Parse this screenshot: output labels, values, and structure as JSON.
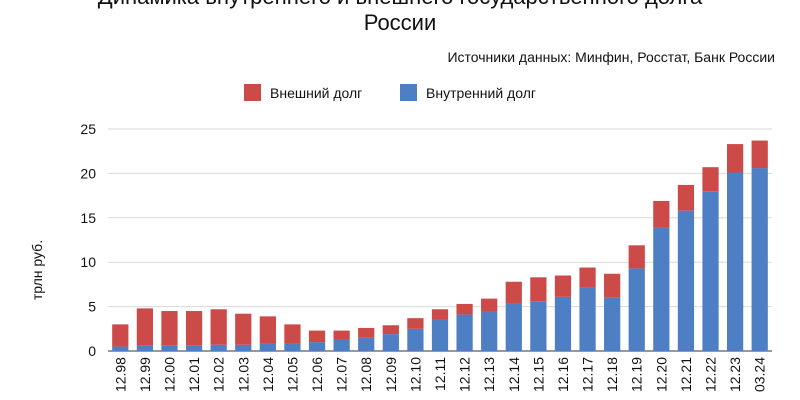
{
  "chart_data": {
    "type": "bar",
    "stacked": true,
    "title": "Динамика внутреннего и внешнего государственного долга России",
    "title_line1": "Динамика внутреннего и внешнего государственного долга",
    "title_line2": "России",
    "subtitle": "Источники данных: Минфин, Росстат, Банк России",
    "ylabel": "трлн руб.",
    "xlabel": "",
    "ylim": [
      0,
      25
    ],
    "yticks": [
      0,
      5,
      10,
      15,
      20,
      25
    ],
    "ytick_labels": [
      "0",
      "5",
      "10",
      "15",
      "20",
      "25"
    ],
    "grid": true,
    "legend_position": "top",
    "categories": [
      "12.98",
      "12.99",
      "12.00",
      "12.01",
      "12.02",
      "12.03",
      "12.04",
      "12.05",
      "12.06",
      "12.07",
      "12.08",
      "12.09",
      "12.10",
      "12.11",
      "12.12",
      "12.13",
      "12.14",
      "12.15",
      "12.16",
      "12.17",
      "12.18",
      "12.19",
      "12.20",
      "12.21",
      "12.22",
      "12.23",
      "03.24"
    ],
    "series": [
      {
        "name": "Внутренний долг",
        "color": "#4e7fc4",
        "values": [
          0.5,
          0.6,
          0.6,
          0.6,
          0.7,
          0.7,
          0.8,
          0.8,
          1.0,
          1.3,
          1.5,
          1.9,
          2.5,
          3.5,
          4.1,
          4.4,
          5.4,
          5.6,
          6.1,
          7.2,
          6.0,
          9.3,
          13.9,
          15.8,
          18.0,
          20.1,
          20.6
        ]
      },
      {
        "name": "Внешний долг",
        "color": "#cc4a47",
        "values": [
          2.5,
          4.2,
          3.9,
          3.9,
          4.0,
          3.5,
          3.1,
          2.2,
          1.3,
          1.0,
          1.1,
          1.0,
          1.2,
          1.2,
          1.2,
          1.5,
          2.4,
          2.7,
          2.4,
          2.2,
          2.7,
          2.6,
          3.0,
          2.9,
          2.7,
          3.2,
          3.1
        ]
      }
    ],
    "legend_order": [
      "Внешний долг",
      "Внутренний долг"
    ]
  }
}
